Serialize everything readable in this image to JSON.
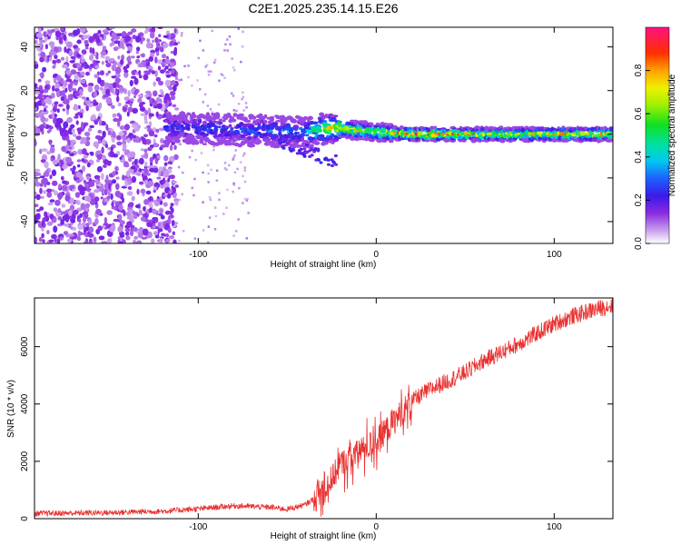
{
  "title": "C2E1.2025.235.14.15.E26",
  "colors": {
    "speckle_dark": "#6a0fe0",
    "speckle_light": "#c9a8f2",
    "snr_line": "#e8302f",
    "axis": "#000000"
  },
  "chart_data": [
    {
      "type": "heatmap",
      "title": "C2E1.2025.235.14.15.E26",
      "xlabel": "Height of straight line (km)",
      "ylabel": "Frequency (Hz)",
      "xlim": [
        -192,
        133
      ],
      "ylim": [
        -50,
        49
      ],
      "xticks": [
        -100,
        0,
        100
      ],
      "xtick_labels": [
        "-100",
        "0",
        "100"
      ],
      "yticks": [
        -40,
        -20,
        0,
        20,
        40
      ],
      "ytick_labels": [
        "-40",
        "-20",
        "0",
        "20",
        "40"
      ],
      "colorbar": {
        "label": "Normalized spectral amplitude",
        "range": [
          0.0,
          1.0
        ],
        "ticks": [
          0.0,
          0.2,
          0.4,
          0.6,
          0.8
        ],
        "tick_labels": [
          "0.0",
          "0.2",
          "0.4",
          "0.6",
          "0.8"
        ]
      },
      "trace": {
        "description_points": [
          {
            "x": -115,
            "freq": 3,
            "amp": 0.3
          },
          {
            "x": -80,
            "freq": 2,
            "amp": 0.3
          },
          {
            "x": -40,
            "freq": 1,
            "amp": 0.4
          },
          {
            "x": -25,
            "freq": 3,
            "amp": 0.8
          },
          {
            "x": 0,
            "freq": 1,
            "amp": 0.7
          },
          {
            "x": 20,
            "freq": 0,
            "amp": 1.0
          },
          {
            "x": 60,
            "freq": 0,
            "amp": 0.8
          },
          {
            "x": 133,
            "freq": 0,
            "amp": 0.9
          }
        ]
      }
    },
    {
      "type": "line",
      "xlabel": "Height of straight line (km)",
      "ylabel": "SNR (10 * v/v)",
      "xlim": [
        -192,
        133
      ],
      "ylim": [
        0,
        7700
      ],
      "xticks": [
        -100,
        0,
        100
      ],
      "xtick_labels": [
        "-100",
        "0",
        "100"
      ],
      "yticks": [
        0,
        2000,
        4000,
        6000
      ],
      "ytick_labels": [
        "0",
        "2000",
        "4000",
        "6000"
      ],
      "series": [
        {
          "name": "SNR",
          "x": [
            -192,
            -150,
            -120,
            -100,
            -80,
            -60,
            -50,
            -40,
            -30,
            -25,
            -20,
            -15,
            -10,
            0,
            10,
            20,
            30,
            40,
            50,
            60,
            70,
            80,
            90,
            100,
            110,
            120,
            133
          ],
          "y": [
            180,
            210,
            260,
            340,
            450,
            400,
            330,
            480,
            900,
            1400,
            1900,
            2100,
            2300,
            2700,
            3400,
            4100,
            4500,
            4800,
            5100,
            5500,
            5800,
            6100,
            6450,
            6800,
            7050,
            7250,
            7450
          ]
        }
      ]
    }
  ]
}
